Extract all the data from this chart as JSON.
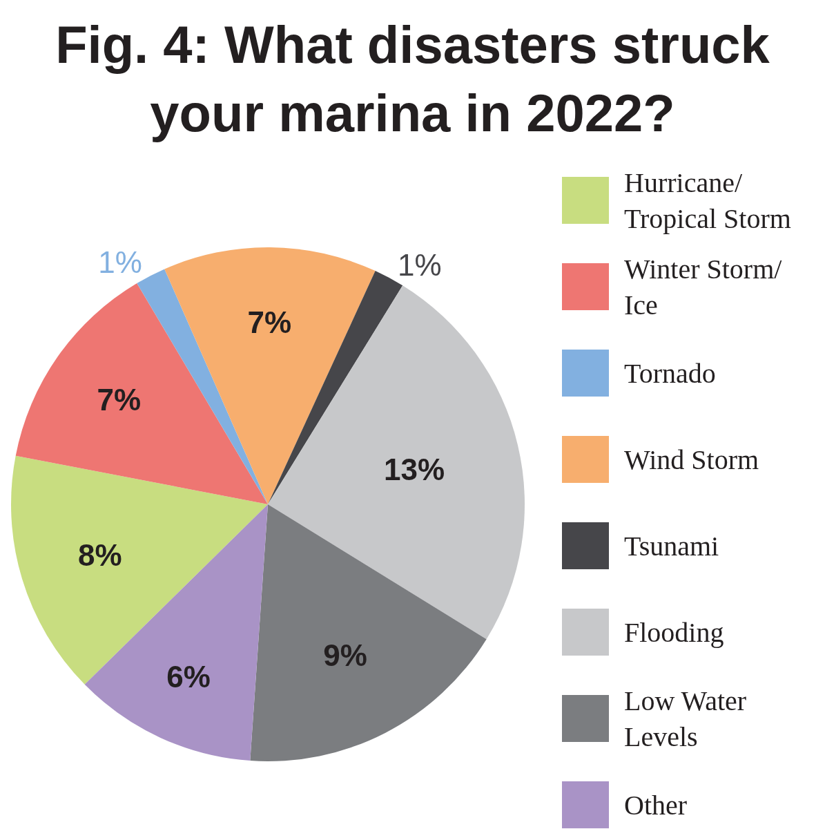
{
  "chart_data": {
    "type": "pie",
    "title": "Fig. 4: What disasters struck your marina in 2022?",
    "categories": [
      "Hurricane/Tropical Storm",
      "Winter Storm/Ice",
      "Tornado",
      "Wind Storm",
      "Tsunami",
      "Flooding",
      "Low Water Levels",
      "Other"
    ],
    "values": [
      8,
      7,
      1,
      7,
      1,
      13,
      9,
      6
    ],
    "value_labels": [
      "8%",
      "7%",
      "1%",
      "7%",
      "1%",
      "13%",
      "9%",
      "6%"
    ],
    "colors": [
      "#c8dd80",
      "#ee7672",
      "#82b0e0",
      "#f7ae6e",
      "#46464a",
      "#c7c8ca",
      "#7b7d80",
      "#a993c6"
    ],
    "legend": "right"
  }
}
